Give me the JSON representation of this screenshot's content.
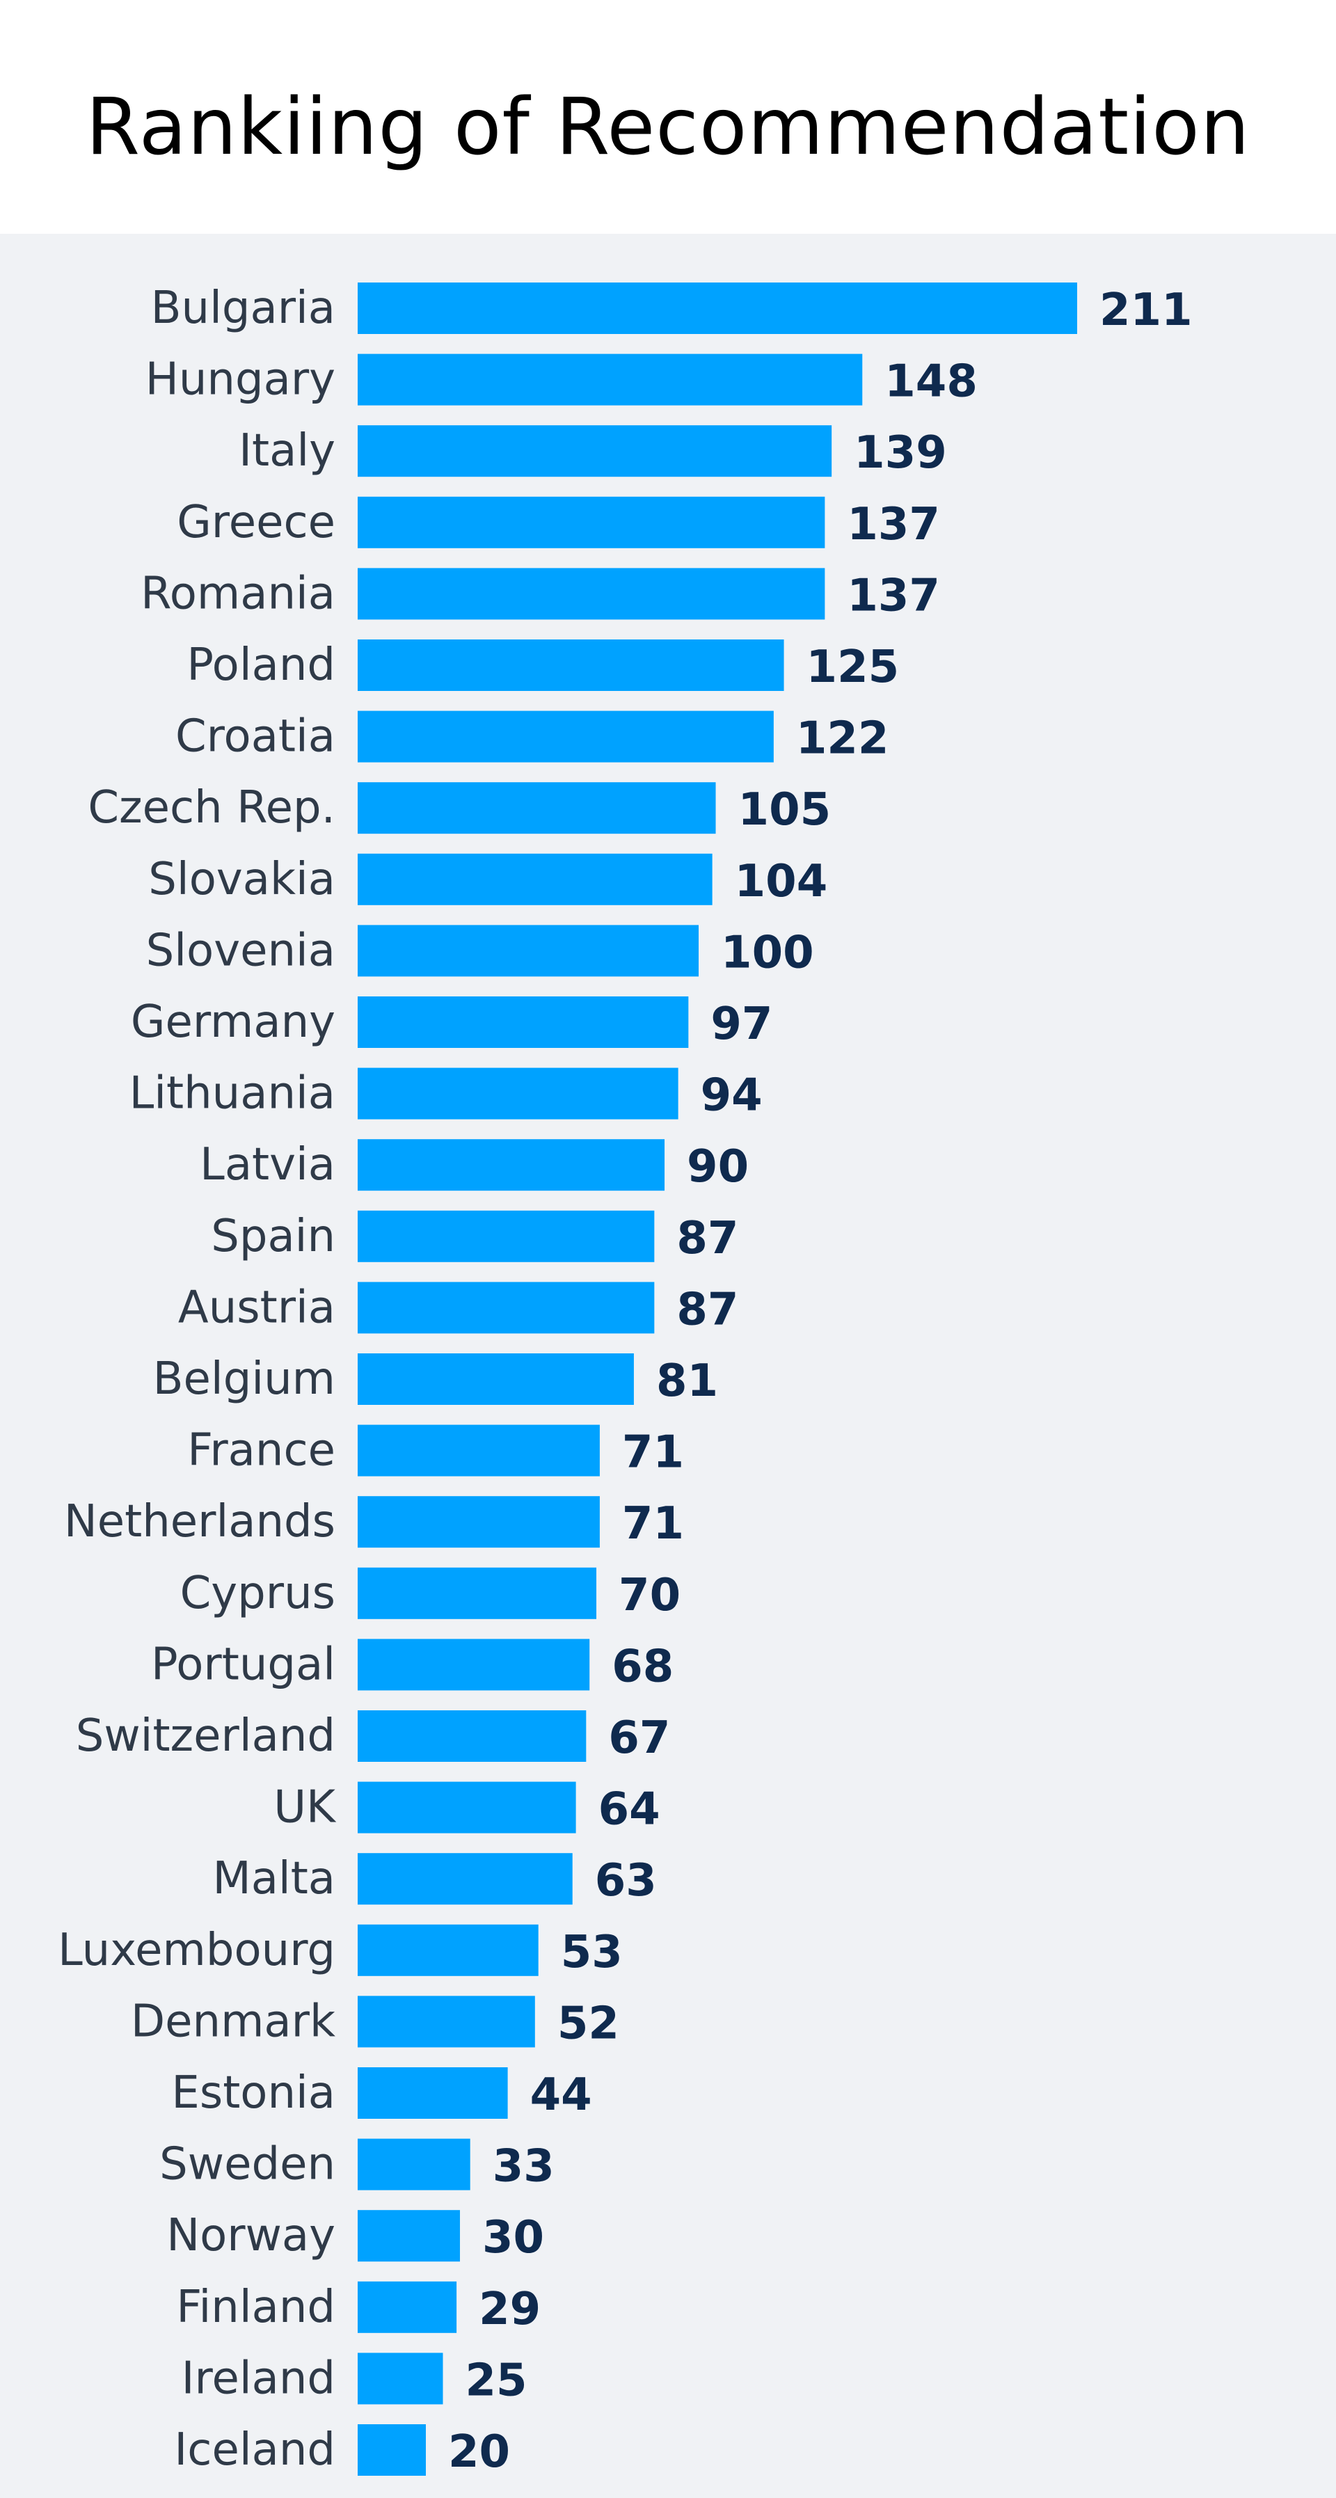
{
  "chart_data": {
    "type": "bar",
    "orientation": "horizontal",
    "title": "Rankiing of Recommendation",
    "xlabel": "",
    "ylabel": "",
    "categories": [
      "Bulgaria",
      "Hungary",
      "Italy",
      "Greece",
      "Romania",
      "Poland",
      "Croatia",
      "Czech Rep.",
      "Slovakia",
      "Slovenia",
      "Germany",
      "Lithuania",
      "Latvia",
      "Spain",
      "Austria",
      "Belgium",
      "France",
      "Netherlands",
      "Cyprus",
      "Portugal",
      "Switzerland",
      "UK",
      "Malta",
      "Luxembourg",
      "Denmark",
      "Estonia",
      "Sweden",
      "Norway",
      "Finland",
      "Ireland",
      "Iceland"
    ],
    "values": [
      211,
      148,
      139,
      137,
      137,
      125,
      122,
      105,
      104,
      100,
      97,
      94,
      90,
      87,
      87,
      81,
      71,
      71,
      70,
      68,
      67,
      64,
      63,
      53,
      52,
      44,
      33,
      30,
      29,
      25,
      20
    ],
    "xlim": [
      0,
      211
    ],
    "grid": false,
    "legend": "none",
    "data_labels": true
  },
  "colors": {
    "bar": "#00a2ff",
    "title_background": "#ffffff",
    "plot_background": "#f0f2f5",
    "category_text": "#2f3a48",
    "value_text": "#0f2a4e"
  }
}
